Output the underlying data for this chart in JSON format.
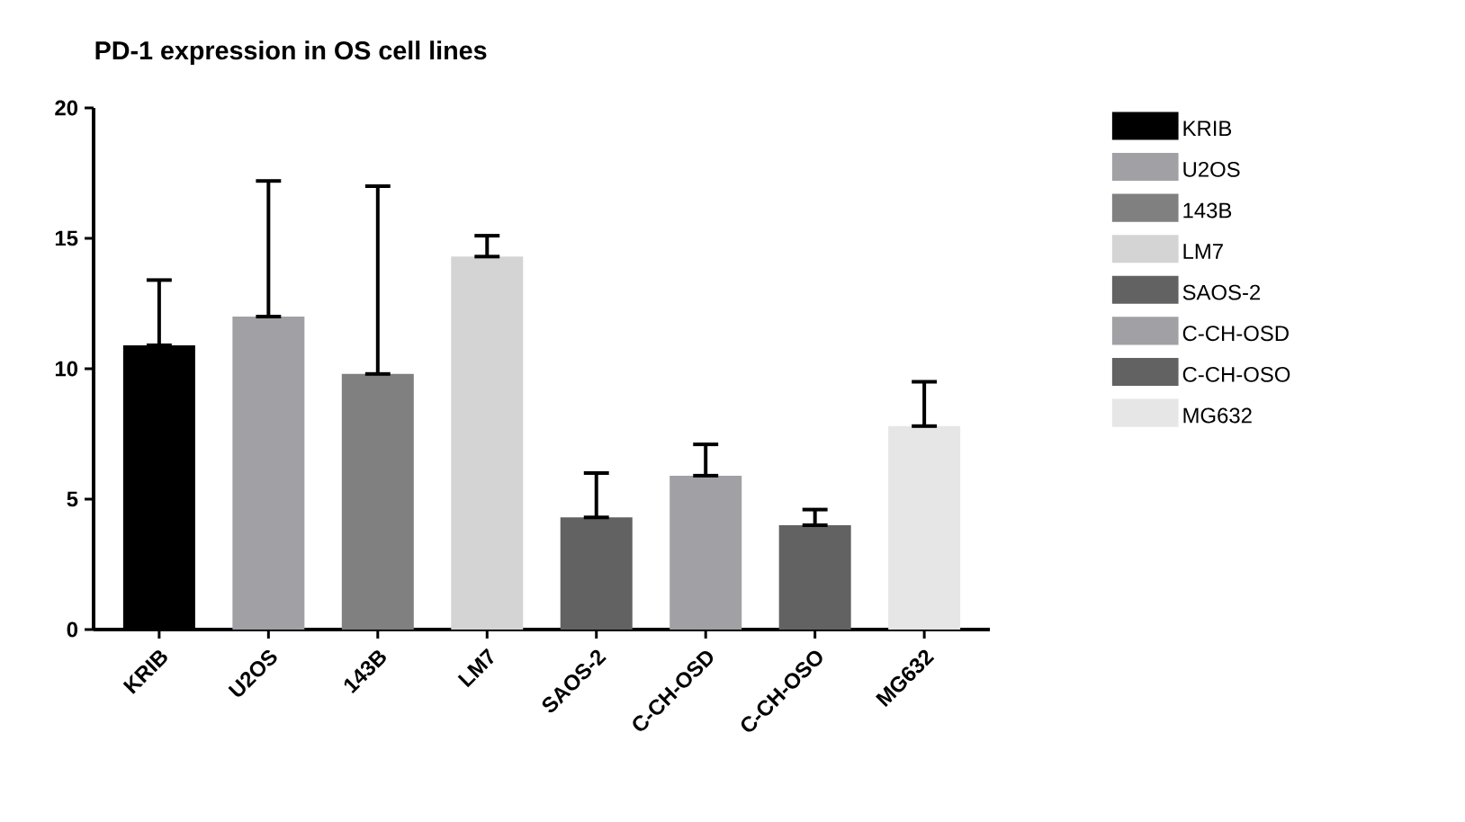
{
  "chart_data": {
    "type": "bar",
    "title": "PD-1 expression in OS cell lines",
    "categories": [
      "KRIB",
      "U2OS",
      "143B",
      "LM7",
      "SAOS-2",
      "C-CH-OSD",
      "C-CH-OSO",
      "MG632"
    ],
    "series": [
      {
        "name": "KRIB",
        "color": "#000000",
        "values": [
          10.9,
          null,
          null,
          null,
          null,
          null,
          null,
          null
        ],
        "errors": [
          [
            10.9,
            13.4
          ],
          null,
          null,
          null,
          null,
          null,
          null,
          null
        ]
      },
      {
        "name": "U2OS",
        "color": "#a1a1a5",
        "values": [
          null,
          12.0,
          null,
          null,
          null,
          null,
          null,
          null
        ],
        "errors": [
          null,
          [
            12.0,
            17.2
          ],
          null,
          null,
          null,
          null,
          null,
          null
        ]
      },
      {
        "name": "143B",
        "color": "#808080",
        "values": [
          null,
          null,
          9.8,
          null,
          null,
          null,
          null,
          null
        ],
        "errors": [
          null,
          null,
          [
            9.8,
            17.0
          ],
          null,
          null,
          null,
          null,
          null
        ]
      },
      {
        "name": "LM7",
        "color": "#d4d4d4",
        "values": [
          null,
          null,
          null,
          14.3,
          null,
          null,
          null,
          null
        ],
        "errors": [
          null,
          null,
          null,
          [
            14.3,
            15.1
          ],
          null,
          null,
          null,
          null
        ]
      },
      {
        "name": "SAOS-2",
        "color": "#626262",
        "values": [
          null,
          null,
          null,
          null,
          4.3,
          null,
          null,
          null
        ],
        "errors": [
          null,
          null,
          null,
          null,
          [
            4.3,
            6.0
          ],
          null,
          null,
          null
        ]
      },
      {
        "name": "C-CH-OSD",
        "color": "#a1a1a5",
        "values": [
          null,
          null,
          null,
          null,
          null,
          5.9,
          null,
          null
        ],
        "errors": [
          null,
          null,
          null,
          null,
          null,
          [
            5.9,
            7.1
          ],
          null,
          null
        ]
      },
      {
        "name": "C-CH-OSO",
        "color": "#626262",
        "values": [
          null,
          null,
          null,
          null,
          null,
          null,
          4.0,
          null
        ],
        "errors": [
          null,
          null,
          null,
          null,
          null,
          null,
          [
            4.0,
            4.6
          ],
          null
        ]
      },
      {
        "name": "MG632",
        "color": "#e6e6e6",
        "values": [
          null,
          null,
          null,
          null,
          null,
          null,
          null,
          7.8
        ],
        "errors": [
          null,
          null,
          null,
          null,
          null,
          null,
          null,
          [
            7.8,
            9.5
          ]
        ]
      }
    ],
    "ylim": [
      0,
      20
    ],
    "yticks": [
      0,
      5,
      10,
      15,
      20
    ],
    "grid": false,
    "legend": "right"
  }
}
